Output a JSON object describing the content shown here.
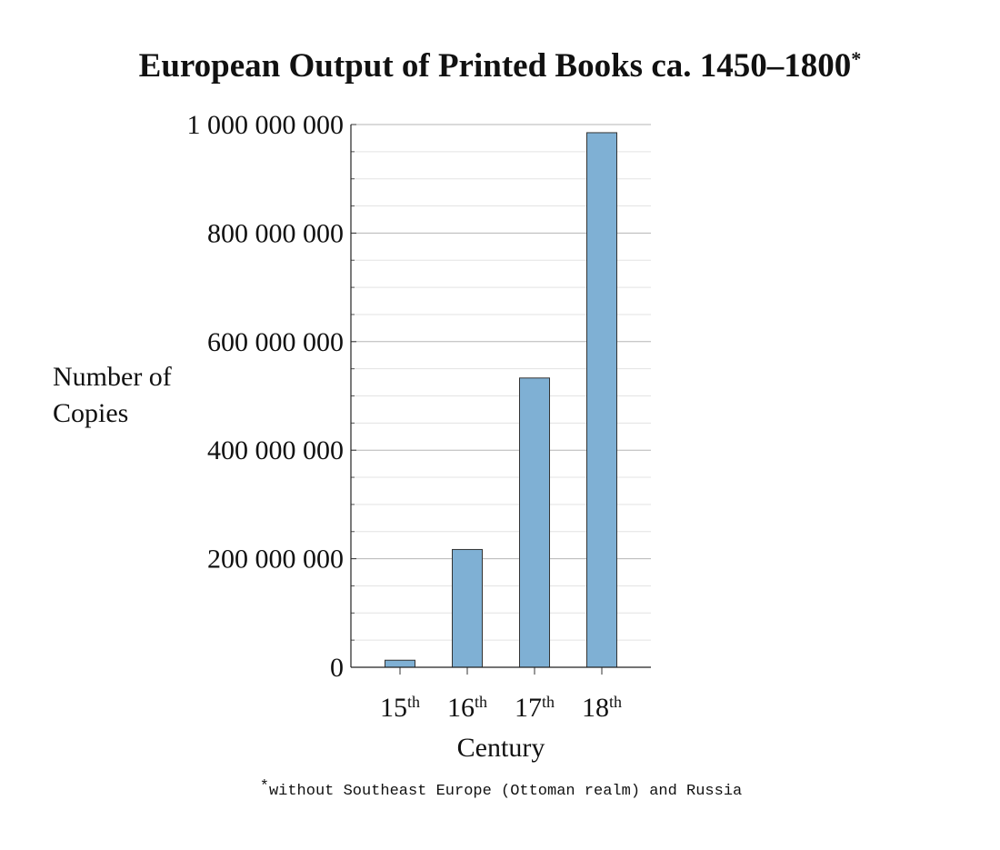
{
  "chart_data": {
    "type": "bar",
    "title": "European Output of Printed Books ca. 1450–1800*",
    "ylabel": "Number of Copies",
    "xlabel": "Century",
    "footnote": "*without Southeast Europe (Ottoman realm) and Russia",
    "categories": [
      "15th",
      "16th",
      "17th",
      "18th"
    ],
    "values": [
      13000000,
      217000000,
      533000000,
      985000000
    ],
    "color": "#7fb0d4",
    "ylim": [
      0,
      1000000000
    ],
    "yticks": [
      {
        "value": 0,
        "label": "0"
      },
      {
        "value": 200000000,
        "label": "200 000 000"
      },
      {
        "value": 400000000,
        "label": "400 000 000"
      },
      {
        "value": 600000000,
        "label": "600 000 000"
      },
      {
        "value": 800000000,
        "label": "800 000 000"
      },
      {
        "value": 1000000000,
        "label": "1 000 000 000"
      }
    ],
    "minor_yticks": [
      50000000,
      100000000,
      150000000,
      250000000,
      300000000,
      350000000,
      450000000,
      500000000,
      550000000,
      650000000,
      700000000,
      750000000,
      850000000,
      900000000,
      950000000
    ],
    "grid": true
  }
}
